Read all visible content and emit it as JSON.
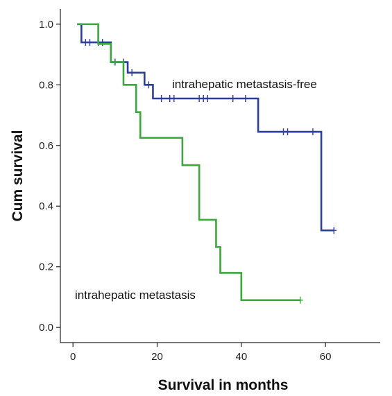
{
  "chart_data": {
    "type": "line",
    "xlabel": "Survival in months",
    "ylabel": "Cum survival",
    "xlim": [
      -3,
      73
    ],
    "ylim": [
      -0.05,
      1.05
    ],
    "x_ticks": [
      0,
      20,
      40,
      60
    ],
    "y_ticks": [
      0.0,
      0.2,
      0.4,
      0.6,
      0.8,
      1.0
    ],
    "y_tick_labels": [
      "0.0",
      "0.2",
      "0.4",
      "0.6",
      "0.8",
      "1.0"
    ],
    "grid": false,
    "series": [
      {
        "name": "intrahepatic metastasis-free",
        "color": "#2e3d9a",
        "step_x": [
          1,
          2,
          8,
          9,
          13,
          17,
          19,
          44,
          59,
          62
        ],
        "step_y": [
          1.0,
          0.94,
          0.94,
          0.875,
          0.84,
          0.8,
          0.755,
          0.645,
          0.32,
          0.32
        ],
        "censored_x": [
          3,
          4,
          6,
          7,
          10,
          12,
          14,
          18,
          21,
          23,
          24,
          30,
          31,
          32,
          38,
          41,
          50,
          51,
          57,
          62
        ],
        "censored_y": [
          0.94,
          0.94,
          0.94,
          0.94,
          0.875,
          0.875,
          0.84,
          0.8,
          0.755,
          0.755,
          0.755,
          0.755,
          0.755,
          0.755,
          0.755,
          0.755,
          0.645,
          0.645,
          0.645,
          0.32
        ]
      },
      {
        "name": "intrahepatic metastasis",
        "color": "#3aa83a",
        "step_x": [
          1,
          5,
          6,
          9,
          12,
          15,
          16,
          26,
          30,
          34,
          35,
          40,
          54
        ],
        "step_y": [
          1.0,
          1.0,
          0.935,
          0.875,
          0.8,
          0.71,
          0.625,
          0.535,
          0.355,
          0.265,
          0.18,
          0.09,
          0.09
        ],
        "censored_x": [
          54
        ],
        "censored_y": [
          0.09
        ]
      }
    ],
    "annotations": [
      {
        "text": "intrahepatic metastasis-free",
        "series": 0
      },
      {
        "text": "intrahepatic metastasis",
        "series": 1
      }
    ]
  }
}
